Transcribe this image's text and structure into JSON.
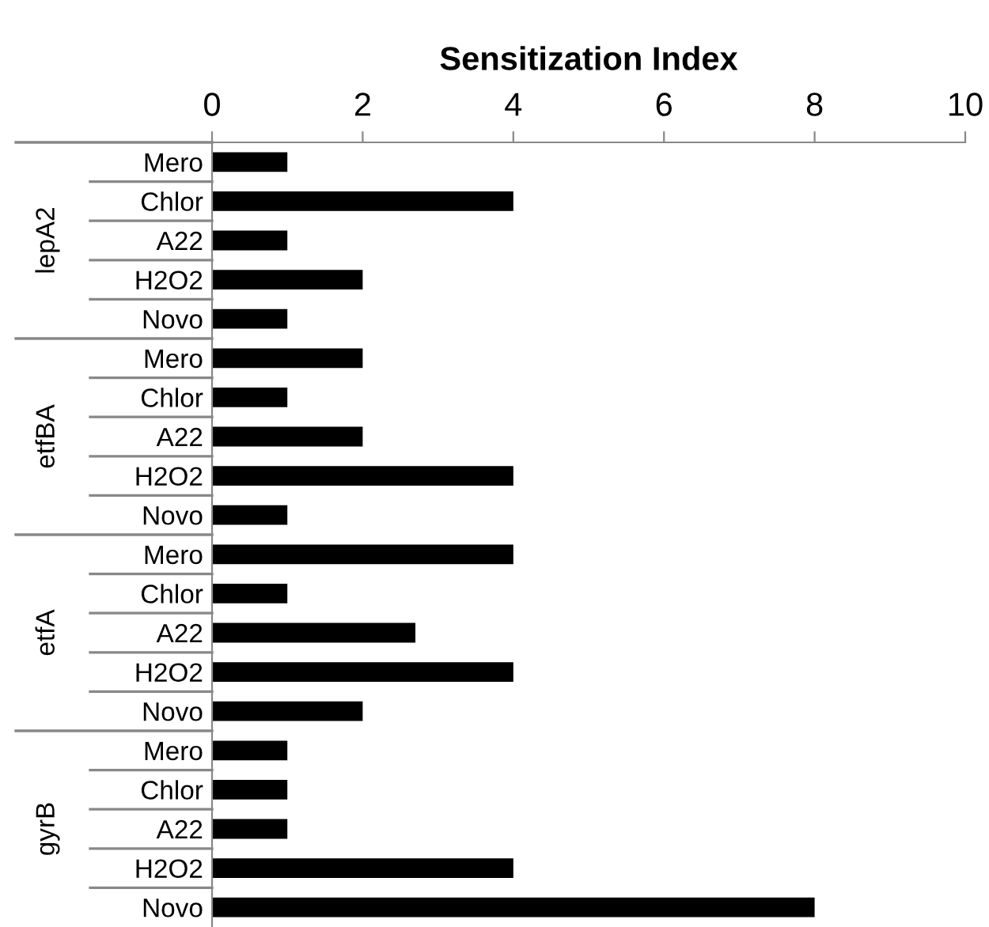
{
  "chart_data": {
    "type": "bar",
    "orientation": "horizontal",
    "xlabel": "Sensitization Index",
    "categories": [
      "Mero",
      "Chlor",
      "A22",
      "H2O2",
      "Novo",
      "Mero",
      "Chlor",
      "A22",
      "H2O2",
      "Novo",
      "Mero",
      "Chlor",
      "A22",
      "H2O2",
      "Novo",
      "Mero",
      "Chlor",
      "A22",
      "H2O2",
      "Novo"
    ],
    "values": [
      1,
      4,
      1,
      2,
      1,
      2,
      1,
      2,
      4,
      1,
      4,
      1,
      2.7,
      4,
      2,
      1,
      1,
      1,
      4,
      8
    ],
    "color": "#000000",
    "xlim": [
      0,
      10
    ],
    "xticks": [
      0,
      2,
      4,
      6,
      8,
      10
    ],
    "grid": false,
    "legend": false,
    "annotations": [
      "lepA2",
      "etfBA",
      "etfA",
      "gyrB"
    ]
  }
}
